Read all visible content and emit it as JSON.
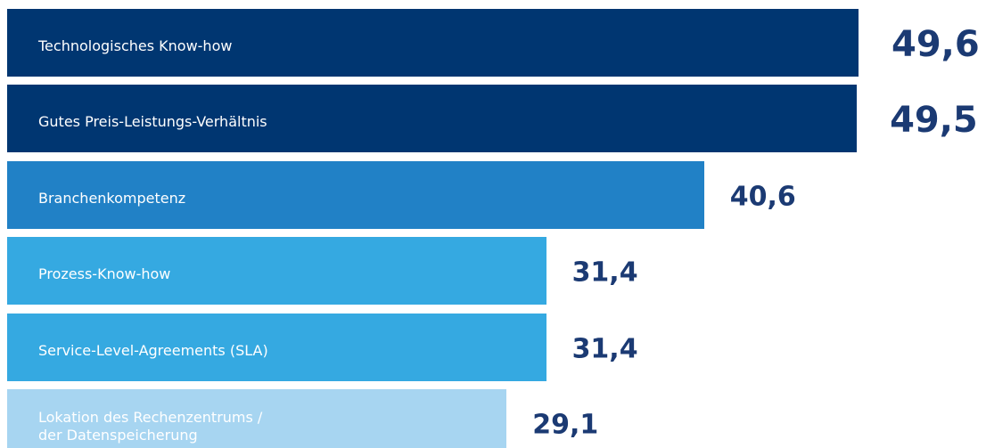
{
  "chart_data": {
    "type": "bar",
    "orientation": "horizontal",
    "categories": [
      "Technologisches Know-how",
      "Gutes Preis-Leistungs-Verhältnis",
      "Branchenkompetenz",
      "Prozess-Know-how",
      "Service-Level-Agreements (SLA)",
      "Lokation des Rechenzentrums /\nder Datenspeicherung"
    ],
    "values": [
      49.6,
      49.5,
      40.6,
      31.4,
      31.4,
      29.1
    ],
    "value_labels": [
      "49,6",
      "49,5",
      "40,6",
      "31,4",
      "31,4",
      "29,1"
    ],
    "colors": [
      "#003671",
      "#003671",
      "#2181c6",
      "#35a9e1",
      "#35a9e1",
      "#a7d5f1"
    ]
  }
}
